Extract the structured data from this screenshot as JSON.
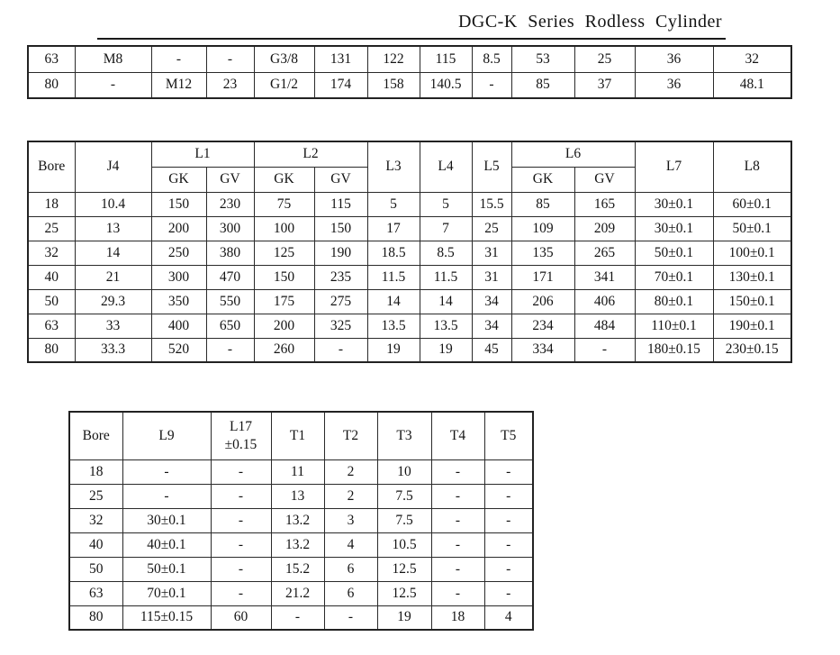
{
  "title": "DGC-K Series Rodless Cylinder",
  "top_table": {
    "rows": [
      [
        "63",
        "M8",
        "-",
        "-",
        "G3/8",
        "131",
        "122",
        "115",
        "8.5",
        "53",
        "25",
        "36",
        "32"
      ],
      [
        "80",
        "-",
        "M12",
        "23",
        "G1/2",
        "174",
        "158",
        "140.5",
        "-",
        "85",
        "37",
        "36",
        "48.1"
      ]
    ]
  },
  "dims_table": {
    "headers": {
      "bore": "Bore",
      "j4": "J4",
      "l1": "L1",
      "l2": "L2",
      "l3": "L3",
      "l4": "L4",
      "l5": "L5",
      "l6": "L6",
      "l7": "L7",
      "l8": "L8",
      "gk": "GK",
      "gv": "GV"
    },
    "rows": [
      [
        "18",
        "10.4",
        "150",
        "230",
        "75",
        "115",
        "5",
        "5",
        "15.5",
        "85",
        "165",
        "30±0.1",
        "60±0.1"
      ],
      [
        "25",
        "13",
        "200",
        "300",
        "100",
        "150",
        "17",
        "7",
        "25",
        "109",
        "209",
        "30±0.1",
        "50±0.1"
      ],
      [
        "32",
        "14",
        "250",
        "380",
        "125",
        "190",
        "18.5",
        "8.5",
        "31",
        "135",
        "265",
        "50±0.1",
        "100±0.1"
      ],
      [
        "40",
        "21",
        "300",
        "470",
        "150",
        "235",
        "11.5",
        "11.5",
        "31",
        "171",
        "341",
        "70±0.1",
        "130±0.1"
      ],
      [
        "50",
        "29.3",
        "350",
        "550",
        "175",
        "275",
        "14",
        "14",
        "34",
        "206",
        "406",
        "80±0.1",
        "150±0.1"
      ],
      [
        "63",
        "33",
        "400",
        "650",
        "200",
        "325",
        "13.5",
        "13.5",
        "34",
        "234",
        "484",
        "110±0.1",
        "190±0.1"
      ],
      [
        "80",
        "33.3",
        "520",
        "-",
        "260",
        "-",
        "19",
        "19",
        "45",
        "334",
        "-",
        "180±0.15",
        "230±0.15"
      ]
    ]
  },
  "t_table": {
    "headers": {
      "bore": "Bore",
      "l9": "L9",
      "l17_line1": "L17",
      "l17_line2": "±0.15",
      "t1": "T1",
      "t2": "T2",
      "t3": "T3",
      "t4": "T4",
      "t5": "T5"
    },
    "rows": [
      [
        "18",
        "-",
        "-",
        "11",
        "2",
        "10",
        "-",
        "-"
      ],
      [
        "25",
        "-",
        "-",
        "13",
        "2",
        "7.5",
        "-",
        "-"
      ],
      [
        "32",
        "30±0.1",
        "-",
        "13.2",
        "3",
        "7.5",
        "-",
        "-"
      ],
      [
        "40",
        "40±0.1",
        "-",
        "13.2",
        "4",
        "10.5",
        "-",
        "-"
      ],
      [
        "50",
        "50±0.1",
        "-",
        "15.2",
        "6",
        "12.5",
        "-",
        "-"
      ],
      [
        "63",
        "70±0.1",
        "-",
        "21.2",
        "6",
        "12.5",
        "-",
        "-"
      ],
      [
        "80",
        "115±0.15",
        "60",
        "-",
        "-",
        "19",
        "18",
        "4"
      ]
    ]
  }
}
